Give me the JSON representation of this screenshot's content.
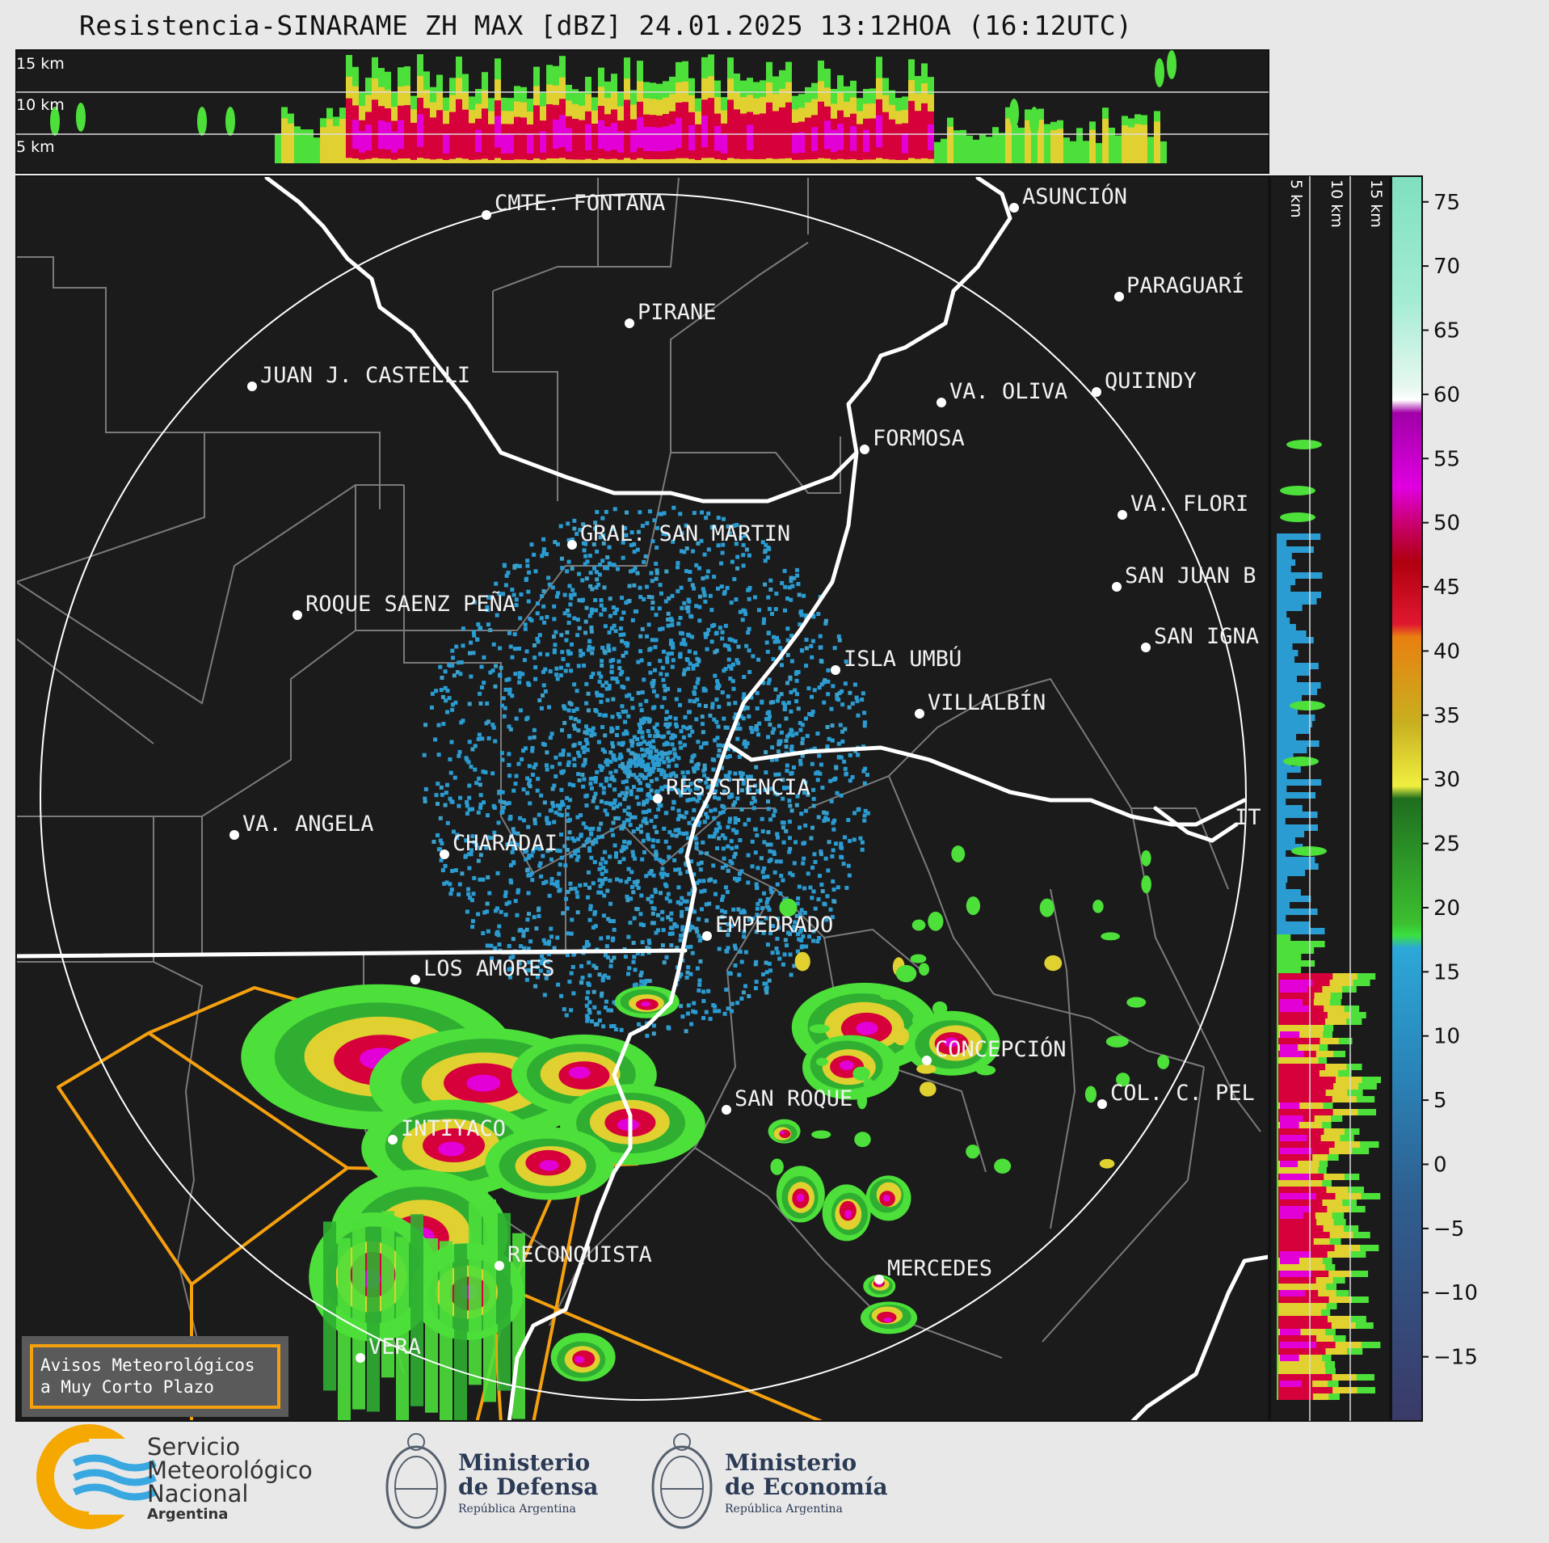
{
  "title": "Resistencia-SINARAME ZH MAX [dBZ] 24.01.2025 13:12HOA (16:12UTC)",
  "top_profile": {
    "levels": [
      "15 km",
      "10 km",
      "5 km"
    ]
  },
  "side_profile": {
    "levels": [
      "5 km",
      "10 km",
      "15 km"
    ]
  },
  "colorbar": {
    "ticks": [
      "75",
      "70",
      "65",
      "60",
      "55",
      "50",
      "45",
      "40",
      "35",
      "30",
      "25",
      "20",
      "15",
      "10",
      "5",
      "0",
      "−5",
      "−10",
      "−15"
    ],
    "range": [
      -20,
      77
    ]
  },
  "cities": [
    {
      "name": "CMTE. FONTANA"
    },
    {
      "name": "ASUNCIÓN"
    },
    {
      "name": "PIRANE"
    },
    {
      "name": "PARAGUARÍ"
    },
    {
      "name": "JUAN J. CASTELLI"
    },
    {
      "name": "VA. OLIVA"
    },
    {
      "name": "QUIINDY"
    },
    {
      "name": "FORMOSA"
    },
    {
      "name": "VA. FLORI"
    },
    {
      "name": "GRAL. SAN MARTIN"
    },
    {
      "name": "SAN JUAN B"
    },
    {
      "name": "ROQUE SAENZ PEÑA"
    },
    {
      "name": "SAN IGNA"
    },
    {
      "name": "ISLA UMBÚ"
    },
    {
      "name": "VILLALBÍN"
    },
    {
      "name": "RESISTENCIA"
    },
    {
      "name": "VA. ANGELA"
    },
    {
      "name": "CHARADAI"
    },
    {
      "name": "IT"
    },
    {
      "name": "EMPEDRADO"
    },
    {
      "name": "LOS AMORES"
    },
    {
      "name": "CONCEPCIÓN"
    },
    {
      "name": "SAN ROQUE"
    },
    {
      "name": "COL. C. PEL"
    },
    {
      "name": "INTIYACO"
    },
    {
      "name": "RECONQUISTA"
    },
    {
      "name": "MERCEDES"
    },
    {
      "name": "VERA"
    }
  ],
  "warning_box": {
    "line1": "Avisos Meteorológicos",
    "line2": "a Muy Corto Plazo"
  },
  "footer": {
    "smn": {
      "line1": "Servicio",
      "line2": "Meteorológico",
      "line3": "Nacional",
      "line4": "Argentina"
    },
    "defensa": {
      "line1": "Ministerio",
      "line2": "de Defensa",
      "line3": "República Argentina"
    },
    "economia": {
      "line1": "Ministerio",
      "line2": "de Economía",
      "line3": "República Argentina"
    }
  },
  "colors": {
    "background": "#1b1b1b",
    "border_lines": "#ffffff",
    "province_lines": "#7a7a7a",
    "warning_polygons": "#f5a00f",
    "low_echo": "#2b9cd2",
    "mid_echo": "#4ddf3a",
    "high_echo": "#d6003a",
    "extreme_echo": "#e300d6"
  }
}
